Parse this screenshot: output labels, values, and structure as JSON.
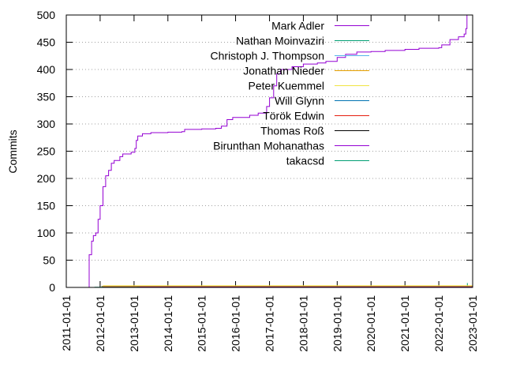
{
  "chart_data": {
    "type": "line",
    "ylabel": "Commits",
    "xlabel": "",
    "ylim": [
      0,
      500
    ],
    "xlim": [
      "2011-01-01",
      "2023-01-01"
    ],
    "y_ticks": [
      "0",
      "50",
      "100",
      "150",
      "200",
      "250",
      "300",
      "350",
      "400",
      "450",
      "500"
    ],
    "x_ticks": [
      "2011-01-01",
      "2012-01-01",
      "2013-01-01",
      "2014-01-01",
      "2015-01-01",
      "2016-01-01",
      "2017-01-01",
      "2018-01-01",
      "2019-01-01",
      "2020-01-01",
      "2021-01-01",
      "2022-01-01",
      "2023-01-01"
    ],
    "grid": "horizontal dotted",
    "legend_position": "top-right",
    "series": [
      {
        "name": "Mark Adler",
        "color": "#9400d3",
        "points": [
          [
            "2011-09-01",
            0
          ],
          [
            "2011-09-05",
            60
          ],
          [
            "2011-10-01",
            85
          ],
          [
            "2011-10-20",
            95
          ],
          [
            "2011-11-15",
            100
          ],
          [
            "2011-12-10",
            125
          ],
          [
            "2012-01-01",
            150
          ],
          [
            "2012-02-01",
            185
          ],
          [
            "2012-03-01",
            205
          ],
          [
            "2012-04-01",
            215
          ],
          [
            "2012-05-01",
            228
          ],
          [
            "2012-06-01",
            233
          ],
          [
            "2012-08-01",
            240
          ],
          [
            "2012-09-01",
            245
          ],
          [
            "2012-12-01",
            248
          ],
          [
            "2013-01-10",
            255
          ],
          [
            "2013-01-25",
            270
          ],
          [
            "2013-02-10",
            278
          ],
          [
            "2013-04-01",
            282
          ],
          [
            "2013-07-01",
            284
          ],
          [
            "2014-01-01",
            285
          ],
          [
            "2014-06-01",
            286
          ],
          [
            "2014-07-01",
            290
          ],
          [
            "2015-01-01",
            291
          ],
          [
            "2015-06-01",
            292
          ],
          [
            "2015-08-01",
            296
          ],
          [
            "2015-10-01",
            308
          ],
          [
            "2015-12-01",
            312
          ],
          [
            "2016-06-01",
            316
          ],
          [
            "2016-09-01",
            320
          ],
          [
            "2016-12-01",
            332
          ],
          [
            "2017-01-01",
            348
          ],
          [
            "2017-02-15",
            370
          ],
          [
            "2017-03-20",
            392
          ],
          [
            "2017-05-01",
            400
          ],
          [
            "2017-09-01",
            405
          ],
          [
            "2018-01-01",
            410
          ],
          [
            "2018-06-01",
            412
          ],
          [
            "2018-09-01",
            415
          ],
          [
            "2019-01-01",
            422
          ],
          [
            "2019-04-01",
            428
          ],
          [
            "2019-08-01",
            432
          ],
          [
            "2020-01-01",
            433
          ],
          [
            "2020-06-01",
            435
          ],
          [
            "2021-01-01",
            437
          ],
          [
            "2021-06-01",
            439
          ],
          [
            "2022-01-01",
            440
          ],
          [
            "2022-02-01",
            445
          ],
          [
            "2022-05-01",
            455
          ],
          [
            "2022-08-01",
            460
          ],
          [
            "2022-10-01",
            465
          ],
          [
            "2022-10-20",
            475
          ],
          [
            "2022-11-01",
            500
          ]
        ]
      },
      {
        "name": "Nathan Moinvaziri",
        "color": "#009e73",
        "points": [
          [
            "2022-11-01",
            0
          ],
          [
            "2022-11-05",
            8
          ]
        ]
      },
      {
        "name": "Christoph J. Thompson",
        "color": "#56b4e9",
        "points": [
          [
            "2012-02-01",
            0
          ],
          [
            "2012-02-01",
            2
          ]
        ]
      },
      {
        "name": "Jonathan Nieder",
        "color": "#e69f00",
        "points": [
          [
            "2012-01-15",
            2
          ],
          [
            "2023-01-01",
            2
          ]
        ]
      },
      {
        "name": "Peter Kuemmel",
        "color": "#f0e442",
        "points": [
          [
            "2012-02-01",
            3
          ],
          [
            "2023-01-01",
            3
          ]
        ]
      },
      {
        "name": "Will Glynn",
        "color": "#0072b2",
        "points": [
          [
            "2012-01-20",
            1
          ],
          [
            "2023-01-01",
            1
          ]
        ]
      },
      {
        "name": "Török Edwin",
        "color": "#e51e10",
        "points": [
          [
            "2012-02-01",
            1
          ],
          [
            "2023-01-01",
            1
          ]
        ]
      },
      {
        "name": "Thomas Roß",
        "color": "#000000",
        "points": [
          [
            "2013-02-01",
            0.5
          ],
          [
            "2023-01-01",
            0.5
          ]
        ]
      },
      {
        "name": "Birunthan Mohanathas",
        "color": "#9400d3",
        "points": [
          [
            "2013-03-01",
            0.5
          ],
          [
            "2023-01-01",
            0.5
          ]
        ]
      },
      {
        "name": "takacsd",
        "color": "#009e73",
        "points": [
          [
            "2011-11-01",
            0.5
          ],
          [
            "2013-03-01",
            0.5
          ]
        ]
      }
    ]
  }
}
